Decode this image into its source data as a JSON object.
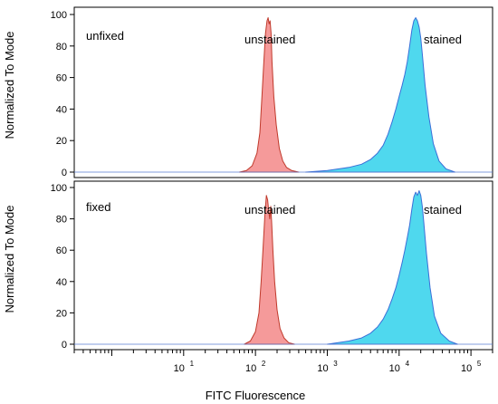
{
  "chart_data": {
    "type": "area",
    "xlabel": "FITC Fluorescence",
    "ylabel": "Normalized To Mode",
    "xscale": "log",
    "xlim": [
      0.3,
      200000
    ],
    "ylim": [
      0,
      100
    ],
    "y_ticks": [
      0,
      20,
      40,
      60,
      80,
      100
    ],
    "x_tick_labels": [
      {
        "base": "10",
        "exp": "1",
        "value": 10
      },
      {
        "base": "10",
        "exp": "2",
        "value": 100
      },
      {
        "base": "10",
        "exp": "3",
        "value": 1000
      },
      {
        "base": "10",
        "exp": "4",
        "value": 10000
      },
      {
        "base": "10",
        "exp": "5",
        "value": 100000
      }
    ],
    "colors": {
      "unstained_fill": "#f59a9a",
      "unstained_line": "#c0392b",
      "stained_fill": "#4fd8ee",
      "stained_line": "#3a6fd8"
    },
    "panels": [
      {
        "label": "unfixed",
        "annotations": [
          "unstained",
          "stained"
        ],
        "series": [
          {
            "name": "unstained",
            "x": [
              60,
              75,
              90,
              105,
              115,
              122,
              130,
              138,
              145,
              150,
              155,
              160,
              165,
              170,
              180,
              195,
              215,
              240,
              270,
              320,
              400
            ],
            "y": [
              0,
              1,
              4,
              12,
              25,
              45,
              68,
              88,
              96,
              98,
              94,
              96,
              88,
              70,
              48,
              30,
              15,
              7,
              3,
              1,
              0
            ]
          },
          {
            "name": "stained",
            "x": [
              500,
              1000,
              2000,
              3000,
              4000,
              5000,
              6000,
              7000,
              8000,
              9000,
              10000,
              11000,
              12000,
              13000,
              14000,
              15000,
              16000,
              17000,
              18000,
              19000,
              20000,
              21000,
              23000,
              26000,
              30000,
              36000,
              45000,
              60000
            ],
            "y": [
              0,
              1,
              3,
              5,
              8,
              12,
              17,
              24,
              32,
              40,
              48,
              55,
              62,
              70,
              80,
              90,
              96,
              98,
              96,
              92,
              85,
              75,
              55,
              35,
              18,
              7,
              2,
              0
            ]
          }
        ]
      },
      {
        "label": "fixed",
        "annotations": [
          "unstained",
          "stained"
        ],
        "series": [
          {
            "name": "unstained",
            "x": [
              70,
              85,
              100,
              112,
              120,
              128,
              135,
              142,
              148,
              153,
              158,
              163,
              168,
              175,
              185,
              200,
              220,
              250,
              290,
              350
            ],
            "y": [
              0,
              2,
              8,
              20,
              40,
              62,
              82,
              95,
              92,
              85,
              80,
              88,
              78,
              60,
              40,
              22,
              10,
              4,
              1,
              0
            ]
          },
          {
            "name": "stained",
            "x": [
              1000,
              2000,
              3000,
              4000,
              5000,
              6000,
              7000,
              8000,
              9000,
              10000,
              11000,
              12000,
              13000,
              14000,
              15000,
              16000,
              17000,
              18000,
              19000,
              20000,
              21000,
              22000,
              24000,
              27000,
              31000,
              38000,
              50000,
              65000
            ],
            "y": [
              0,
              2,
              4,
              7,
              11,
              16,
              22,
              29,
              36,
              44,
              52,
              60,
              68,
              76,
              86,
              94,
              97,
              95,
              98,
              95,
              88,
              78,
              58,
              36,
              18,
              7,
              2,
              0
            ]
          }
        ]
      }
    ]
  }
}
